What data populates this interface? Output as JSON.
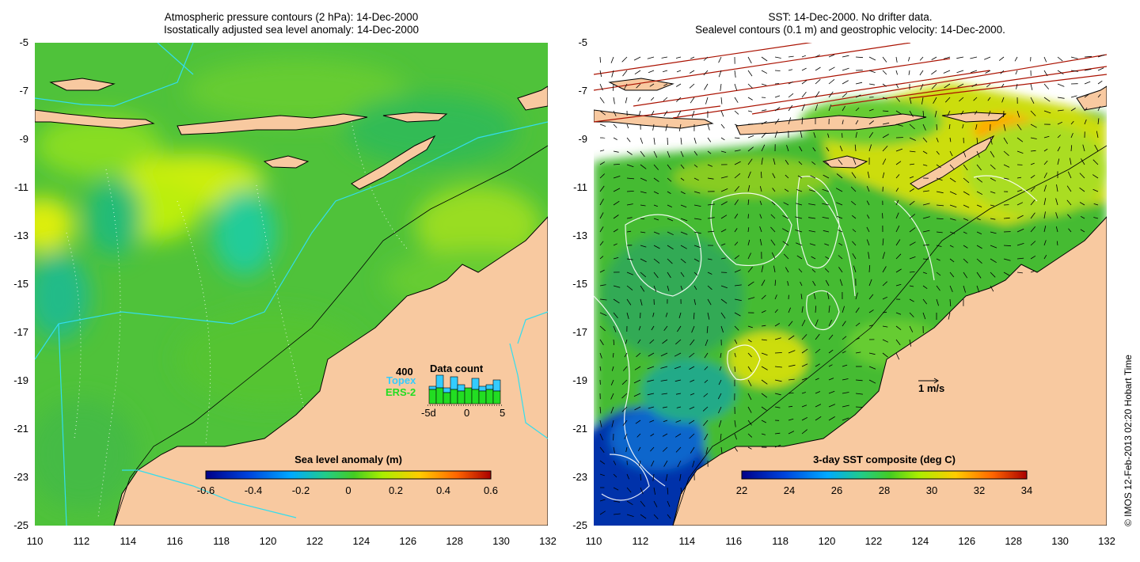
{
  "left_panel": {
    "title_line1": "Atmospheric pressure contours (2 hPa): 14-Dec-2000",
    "title_line2": "Isostatically adjusted sea level anomaly: 14-Dec-2000",
    "colorbar": {
      "label": "Sea level anomaly (m)",
      "ticks": [
        "-0.6",
        "-0.4",
        "-0.2",
        "0",
        "0.2",
        "0.4",
        "0.6"
      ]
    },
    "data_count": {
      "title": "Data count",
      "scale_value": "400",
      "series": [
        {
          "name": "Topex",
          "color": "#33ccff"
        },
        {
          "name": "ERS-2",
          "color": "#22dd22"
        }
      ],
      "day_ticks": [
        "-5d",
        "0",
        "5"
      ],
      "topex_values": [
        0.55,
        0.9,
        0.5,
        0.85,
        0.6,
        0.2,
        0.8,
        0.55,
        0.6,
        0.75
      ],
      "ers_values": [
        0.45,
        0.5,
        0.35,
        0.45,
        0.4,
        0.5,
        0.45,
        0.4,
        0.45,
        0.4
      ]
    }
  },
  "right_panel": {
    "title_line1": "SST: 14-Dec-2000. No drifter data.",
    "title_line2": "Sealevel contours (0.1 m) and geostrophic velocity: 14-Dec-2000.",
    "colorbar": {
      "label": "3-day SST composite (deg C)",
      "ticks": [
        "22",
        "24",
        "26",
        "28",
        "30",
        "32",
        "34"
      ]
    },
    "velocity_scale_label": "1 m/s"
  },
  "axes": {
    "x_ticks": [
      "110",
      "112",
      "114",
      "116",
      "118",
      "120",
      "122",
      "124",
      "126",
      "128",
      "130",
      "132"
    ],
    "y_ticks": [
      "-5",
      "-7",
      "-9",
      "-11",
      "-13",
      "-15",
      "-17",
      "-19",
      "-21",
      "-23",
      "-25"
    ]
  },
  "copyright": "© IMOS 12-Feb-2013 02:20 Hobart Time",
  "colors": {
    "land": "#f8c9a0",
    "ocean_green": "#55cc33",
    "anomaly_ramp": [
      "#000088",
      "#0044dd",
      "#00aaff",
      "#22cc88",
      "#44cc22",
      "#aaee00",
      "#ffcc00",
      "#ff6600",
      "#aa0000"
    ]
  }
}
